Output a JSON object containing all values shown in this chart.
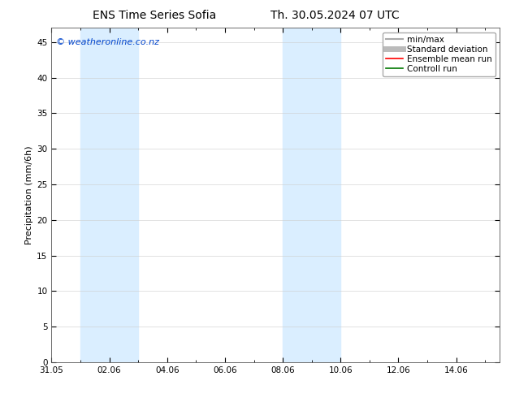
{
  "title_left": "ENS Time Series Sofia",
  "title_right": "Th. 30.05.2024 07 UTC",
  "ylabel": "Precipitation (mm/6h)",
  "watermark": "© weatheronline.co.nz",
  "watermark_color": "#0044cc",
  "ylim": [
    0,
    47
  ],
  "yticks": [
    0,
    5,
    10,
    15,
    20,
    25,
    30,
    35,
    40,
    45
  ],
  "xtick_labels": [
    "31.05",
    "02.06",
    "04.06",
    "06.06",
    "08.06",
    "10.06",
    "12.06",
    "14.06"
  ],
  "xtick_positions": [
    0,
    2,
    4,
    6,
    8,
    10,
    12,
    14
  ],
  "xlim": [
    0,
    15.5
  ],
  "background_color": "#ffffff",
  "plot_bg_color": "#ffffff",
  "shade_color": "#daeeff",
  "shade_regions": [
    {
      "x_start": 1.0,
      "x_end": 3.0
    },
    {
      "x_start": 8.0,
      "x_end": 10.0
    }
  ],
  "legend_items": [
    {
      "label": "min/max",
      "color": "#aaaaaa",
      "lw": 1.5
    },
    {
      "label": "Standard deviation",
      "color": "#bbbbbb",
      "lw": 5
    },
    {
      "label": "Ensemble mean run",
      "color": "#ff0000",
      "lw": 1.2
    },
    {
      "label": "Controll run",
      "color": "#007700",
      "lw": 1.2
    }
  ],
  "title_fontsize": 10,
  "tick_fontsize": 7.5,
  "ylabel_fontsize": 8,
  "watermark_fontsize": 8,
  "legend_fontsize": 7.5
}
